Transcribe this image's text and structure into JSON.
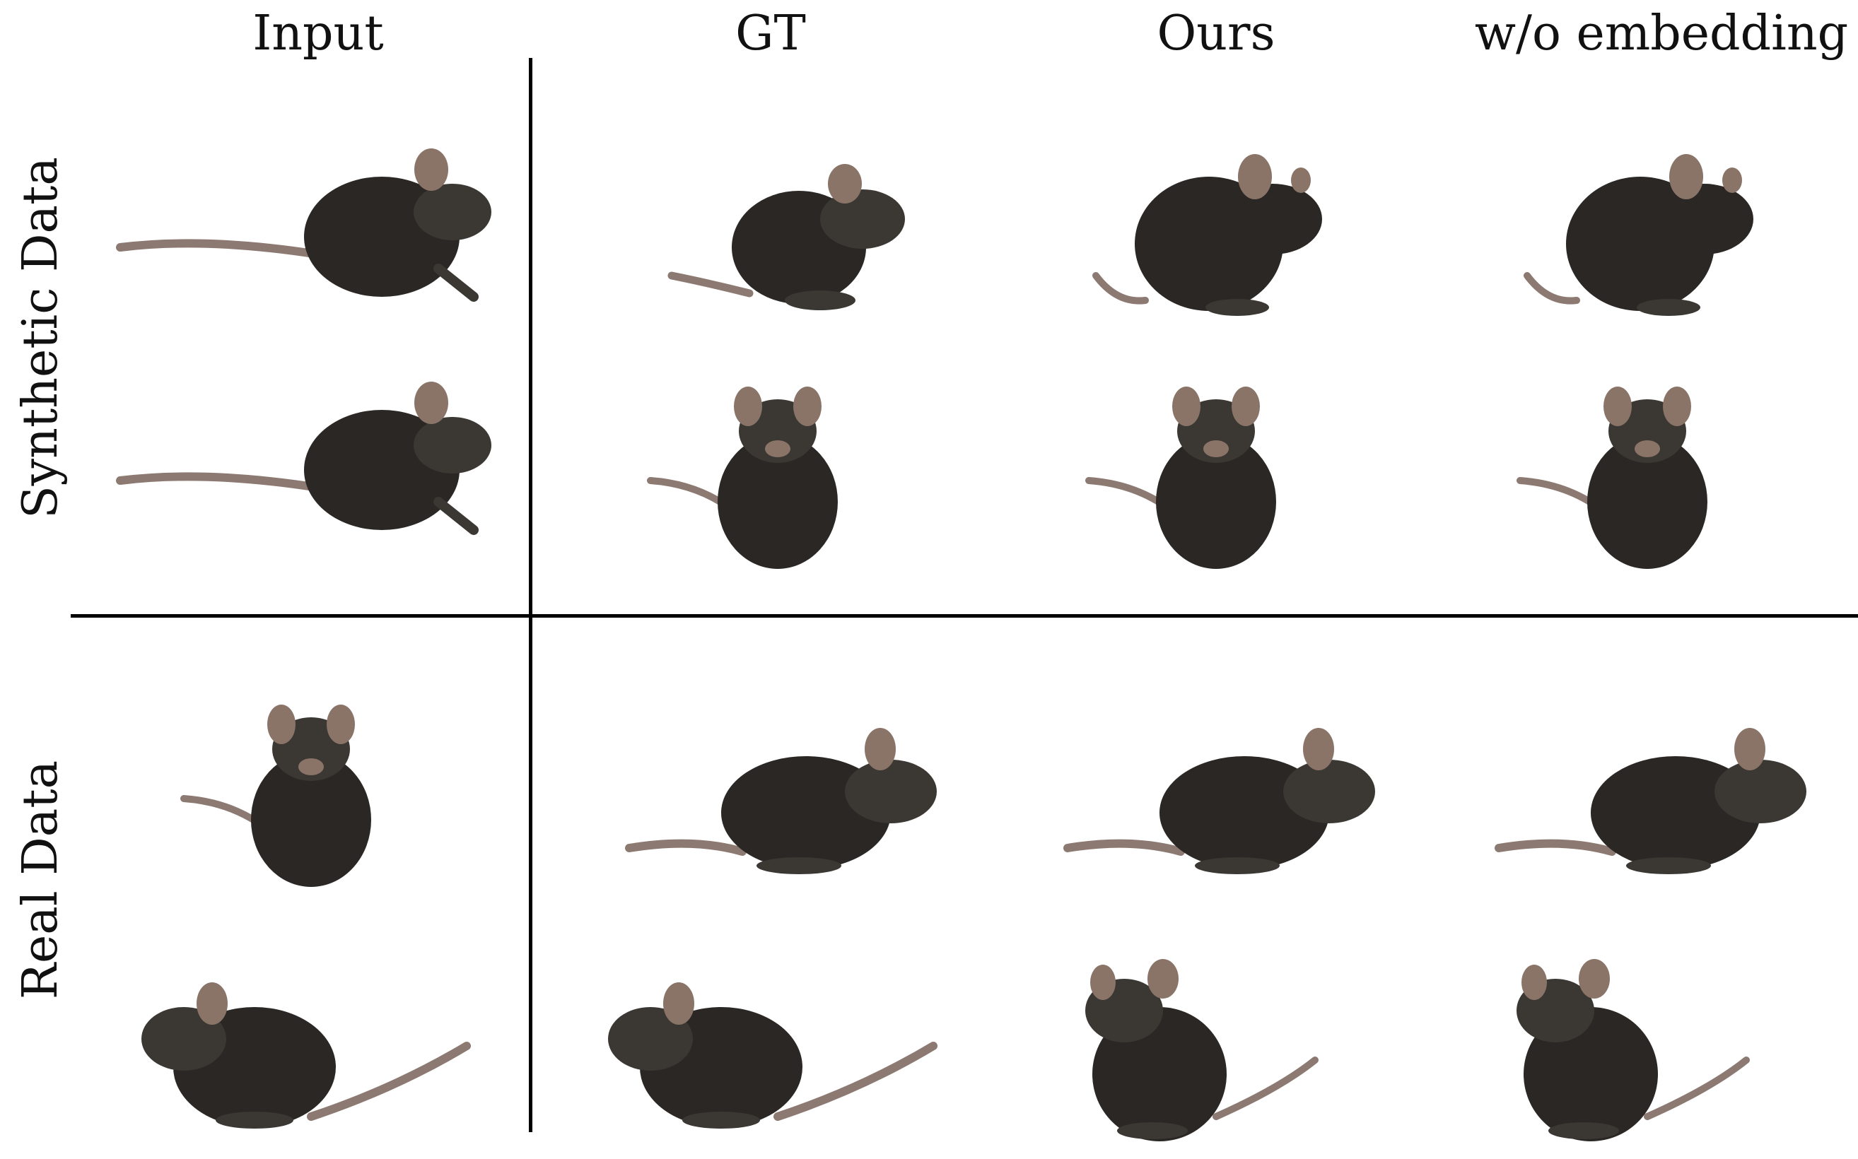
{
  "columns": [
    "Input",
    "GT",
    "Ours",
    "w/o embedding"
  ],
  "rows": [
    "Synthetic Data",
    "Real Data"
  ],
  "mouse_icon": "mouse-photo-icon",
  "colors": {
    "fur": "#2a2724",
    "fur_light": "#3b3833",
    "ear": "#8a7468",
    "tail": "#8c7a72",
    "divider": "#000000"
  },
  "images": [
    {
      "row": 0,
      "col": 0,
      "pose": "side-right-tail-long"
    },
    {
      "row": 0,
      "col": 1,
      "pose": "side-right-crouch"
    },
    {
      "row": 0,
      "col": 2,
      "pose": "side-right-upright"
    },
    {
      "row": 0,
      "col": 3,
      "pose": "side-right-upright"
    },
    {
      "row": 1,
      "col": 0,
      "pose": "side-right-tail-long"
    },
    {
      "row": 1,
      "col": 1,
      "pose": "front-facing"
    },
    {
      "row": 1,
      "col": 2,
      "pose": "front-facing"
    },
    {
      "row": 1,
      "col": 3,
      "pose": "front-facing"
    },
    {
      "row": 2,
      "col": 0,
      "pose": "front-facing"
    },
    {
      "row": 2,
      "col": 1,
      "pose": "side-right-walk"
    },
    {
      "row": 2,
      "col": 2,
      "pose": "side-right-walk"
    },
    {
      "row": 2,
      "col": 3,
      "pose": "side-right-walk"
    },
    {
      "row": 3,
      "col": 0,
      "pose": "side-left-tail-up"
    },
    {
      "row": 3,
      "col": 1,
      "pose": "side-left-tail-up"
    },
    {
      "row": 3,
      "col": 2,
      "pose": "three-quarter-left"
    },
    {
      "row": 3,
      "col": 3,
      "pose": "three-quarter-left"
    }
  ]
}
